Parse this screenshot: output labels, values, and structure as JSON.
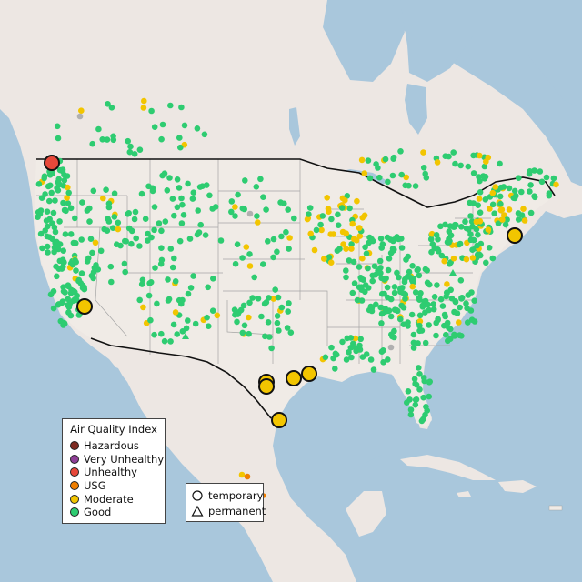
{
  "legend": {
    "title": "Air Quality Index",
    "categories": [
      {
        "label": "Hazardous",
        "color": "#7e2a21"
      },
      {
        "label": "Very Unhealthy",
        "color": "#8f3f97"
      },
      {
        "label": "Unhealthy",
        "color": "#e8483a"
      },
      {
        "label": "USG",
        "color": "#ef7e00"
      },
      {
        "label": "Moderate",
        "color": "#f2c500"
      },
      {
        "label": "Good",
        "color": "#2ecc71"
      }
    ],
    "shapes": [
      {
        "label": "temporary",
        "icon": "circle-icon"
      },
      {
        "label": "permanent",
        "icon": "triangle-icon"
      }
    ]
  },
  "highlighted_monitors": [
    {
      "category": "Unhealthy",
      "region": "Pacific Northwest"
    },
    {
      "category": "Moderate",
      "region": "Central California"
    },
    {
      "category": "Moderate",
      "region": "Southeast Texas"
    },
    {
      "category": "Moderate",
      "region": "Southeast Texas"
    },
    {
      "category": "Moderate",
      "region": "Louisiana"
    },
    {
      "category": "Moderate",
      "region": "Louisiana"
    },
    {
      "category": "Moderate",
      "region": "South Texas"
    },
    {
      "category": "Moderate",
      "region": "Massachusetts"
    }
  ],
  "colors": {
    "water": "#a9c7dc",
    "land": "#ede7e3",
    "us_land": "#f0ebe6",
    "state_lines": "#a4a4a4",
    "border": "#111111"
  }
}
